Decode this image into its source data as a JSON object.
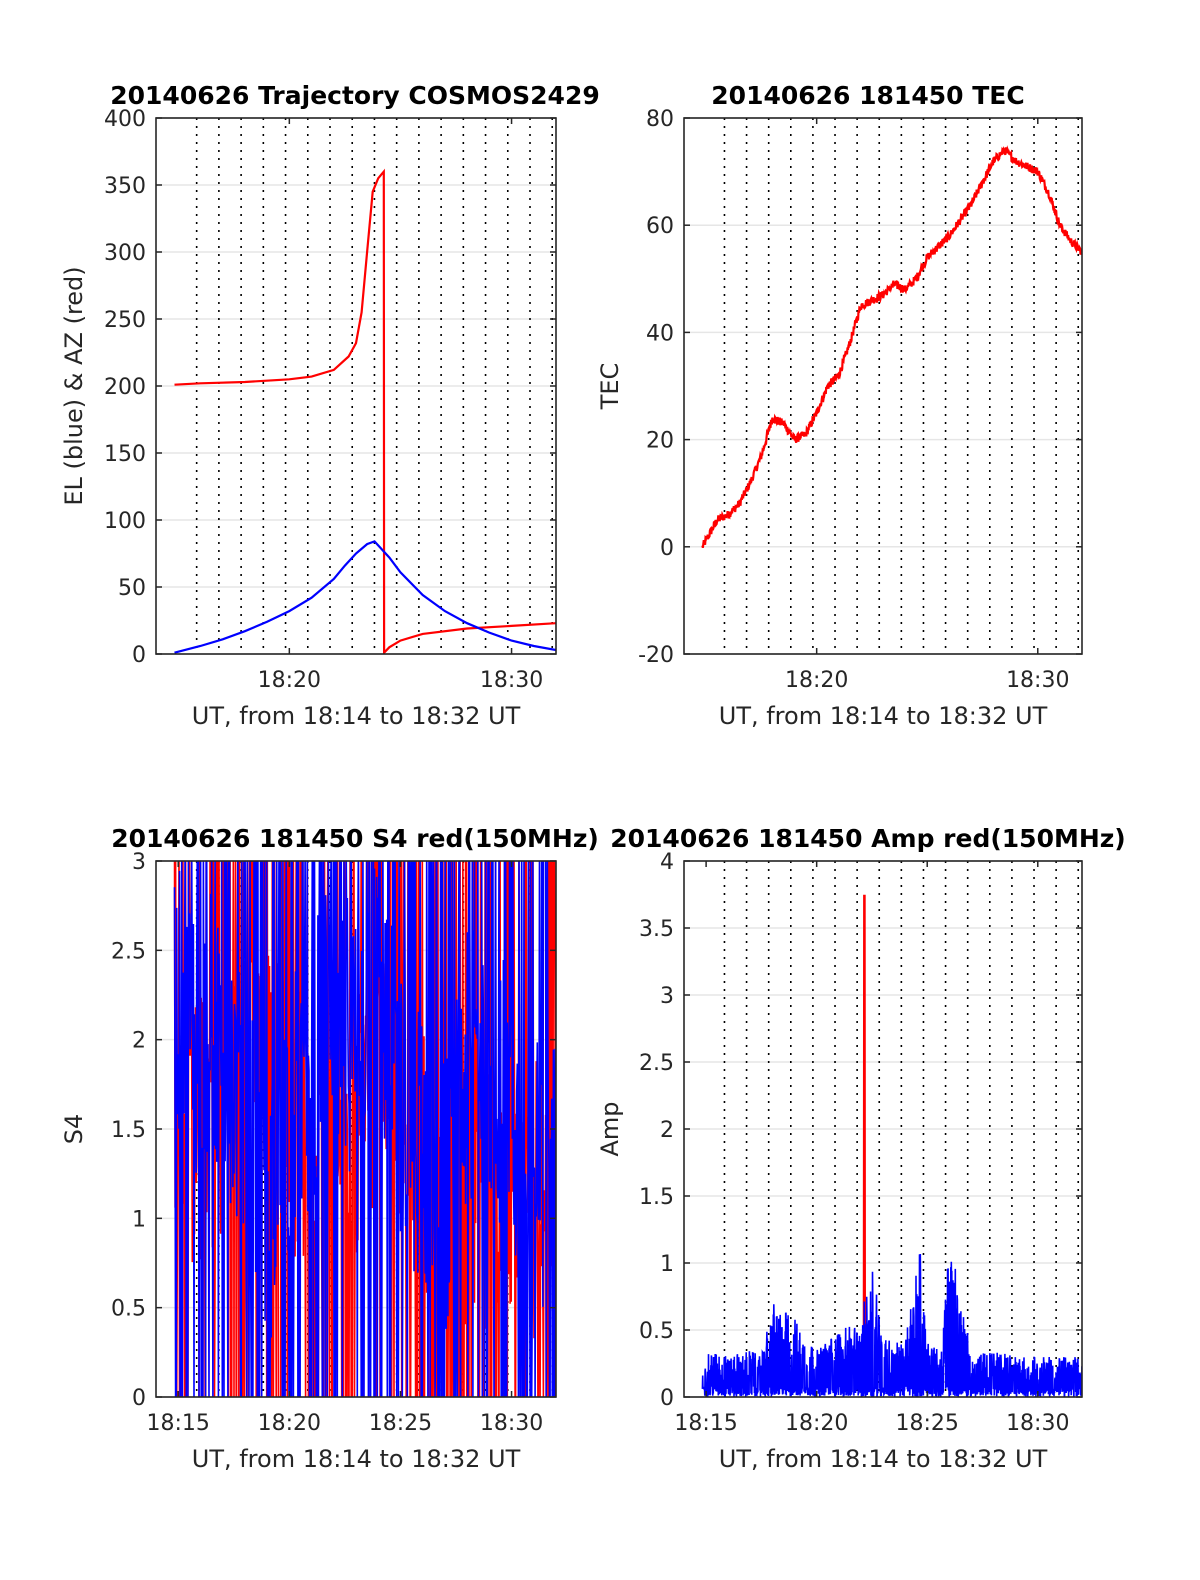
{
  "figure": {
    "background": "#ffffff"
  },
  "colors": {
    "red": "#ff0000",
    "blue": "#0000ff",
    "axis": "#262626",
    "grid": "#e6e6e6",
    "vline": "#000000"
  },
  "chart_data": [
    {
      "id": "trajectory",
      "type": "line",
      "title": "20140626 Trajectory COSMOS2429",
      "xlabel": "UT, from 18:14 to 18:32 UT",
      "ylabel": "EL (blue) & AZ (red)",
      "xlim": [
        "18:14",
        "18:32"
      ],
      "ylim": [
        0,
        400
      ],
      "xticks": [
        "18:20",
        "18:30"
      ],
      "yticks": [
        "0",
        "50",
        "100",
        "150",
        "200",
        "250",
        "300",
        "350",
        "400"
      ],
      "grid": true,
      "series": [
        {
          "color": "#ff0000",
          "style": "line",
          "x": [
            "18:14:50",
            "18:16:00",
            "18:18:00",
            "18:20:00",
            "18:21:00",
            "18:22:00",
            "18:22:40",
            "18:23:00",
            "18:23:15",
            "18:23:30",
            "18:23:45",
            "18:24:00",
            "18:24:15",
            "18:24:16",
            "18:24:30",
            "18:25:00",
            "18:26:00",
            "18:28:00",
            "18:30:00",
            "18:32:00"
          ],
          "values": [
            201,
            202,
            203,
            205,
            207,
            212,
            222,
            232,
            255,
            300,
            345,
            355,
            360,
            1,
            5,
            10,
            15,
            19,
            21,
            23
          ]
        },
        {
          "color": "#0000ff",
          "style": "line",
          "x": [
            "18:14:50",
            "18:16:00",
            "18:17:00",
            "18:18:00",
            "18:19:00",
            "18:20:00",
            "18:21:00",
            "18:22:00",
            "18:22:30",
            "18:23:00",
            "18:23:30",
            "18:23:50",
            "18:24:30",
            "18:25:00",
            "18:26:00",
            "18:27:00",
            "18:28:00",
            "18:29:00",
            "18:30:00",
            "18:31:00",
            "18:32:00"
          ],
          "values": [
            1,
            6,
            11,
            17,
            24,
            32,
            42,
            56,
            66,
            75,
            82,
            84,
            72,
            61,
            44,
            32,
            23,
            16,
            10,
            6,
            3
          ]
        }
      ]
    },
    {
      "id": "tec",
      "type": "line",
      "title": "20140626 181450 TEC",
      "xlabel": "UT, from 18:14 to 18:32 UT",
      "ylabel": "TEC",
      "xlim": [
        "18:14",
        "18:32"
      ],
      "ylim": [
        -20,
        80
      ],
      "xticks": [
        "18:20",
        "18:30"
      ],
      "yticks": [
        "-20",
        "0",
        "20",
        "40",
        "60",
        "80"
      ],
      "grid": true,
      "series": [
        {
          "color": "#ff0000",
          "style": "line",
          "x": [
            "18:14:50",
            "18:15:30",
            "18:16:00",
            "18:16:30",
            "18:17:00",
            "18:17:30",
            "18:18:00",
            "18:18:30",
            "18:19:00",
            "18:19:30",
            "18:20:00",
            "18:20:30",
            "18:21:00",
            "18:21:30",
            "18:22:00",
            "18:22:30",
            "18:23:00",
            "18:23:30",
            "18:24:00",
            "18:24:30",
            "18:25:00",
            "18:25:30",
            "18:26:00",
            "18:26:30",
            "18:27:00",
            "18:27:30",
            "18:28:00",
            "18:28:30",
            "18:29:00",
            "18:29:30",
            "18:30:00",
            "18:30:30",
            "18:31:00",
            "18:31:30",
            "18:32:00"
          ],
          "values": [
            0,
            5,
            6,
            8,
            12,
            17,
            24,
            23,
            20,
            21,
            25,
            30,
            32,
            38,
            45,
            46,
            47,
            49,
            48,
            50,
            54,
            56,
            58,
            61,
            64,
            68,
            72,
            74,
            72,
            71,
            70,
            66,
            60,
            57,
            55
          ]
        }
      ]
    },
    {
      "id": "s4",
      "type": "line",
      "title": "20140626 181450 S4 red(150MHz)",
      "xlabel": "UT, from 18:14 to 18:32 UT",
      "ylabel": "S4",
      "xlim": [
        "18:14",
        "18:32"
      ],
      "ylim": [
        0,
        3
      ],
      "xticks": [
        "18:15",
        "18:20",
        "18:25",
        "18:30"
      ],
      "yticks": [
        "0",
        "0.5",
        "1",
        "1.5",
        "2",
        "2.5",
        "3"
      ],
      "grid": true,
      "series": [
        {
          "color": "#ff0000",
          "style": "noisy",
          "x": [
            "18:14:50",
            "18:16:00",
            "18:17:00",
            "18:18:00",
            "18:19:00",
            "18:20:00",
            "18:21:00",
            "18:22:00",
            "18:23:00",
            "18:24:00",
            "18:25:00",
            "18:26:00",
            "18:27:00",
            "18:28:00",
            "18:29:00",
            "18:30:00",
            "18:31:00",
            "18:32:00"
          ],
          "values": [
            1.4,
            1.5,
            1.6,
            1.7,
            1.8,
            1.6,
            1.5,
            1.9,
            1.6,
            1.8,
            1.7,
            1.4,
            1.2,
            1.2,
            1.1,
            1.0,
            1.1,
            1.3
          ]
        },
        {
          "color": "#0000ff",
          "style": "noisy",
          "x": [
            "18:14:50",
            "18:16:00",
            "18:17:00",
            "18:18:00",
            "18:19:00",
            "18:20:00",
            "18:21:00",
            "18:22:00",
            "18:23:00",
            "18:24:00",
            "18:25:00",
            "18:26:00",
            "18:27:00",
            "18:28:00",
            "18:29:00",
            "18:30:00",
            "18:31:00",
            "18:32:00"
          ],
          "values": [
            2.2,
            2.0,
            2.1,
            1.5,
            1.0,
            1.6,
            1.8,
            2.2,
            2.0,
            2.3,
            1.6,
            1.4,
            1.1,
            1.8,
            2.0,
            1.5,
            1.2,
            1.4
          ]
        }
      ]
    },
    {
      "id": "amp",
      "type": "line",
      "title": "20140626 181450 Amp red(150MHz)",
      "xlabel": "UT, from 18:14 to 18:32 UT",
      "ylabel": "Amp",
      "xlim": [
        "18:14",
        "18:32"
      ],
      "ylim": [
        0,
        4
      ],
      "xticks": [
        "18:15",
        "18:20",
        "18:25",
        "18:30"
      ],
      "yticks": [
        "0",
        "0.5",
        "1",
        "1.5",
        "2",
        "2.5",
        "3",
        "3.5",
        "4"
      ],
      "grid": true,
      "series": [
        {
          "color": "#ff0000",
          "style": "line",
          "x": [
            "18:22:08",
            "18:22:09",
            "18:22:10",
            "18:22:11",
            "18:22:12"
          ],
          "values": [
            0.2,
            3.74,
            3.74,
            0.3,
            0.2
          ]
        },
        {
          "color": "#0000ff",
          "style": "spiky",
          "x": [
            "18:14:50",
            "18:15:30",
            "18:16:00",
            "18:17:00",
            "18:17:30",
            "18:18:00",
            "18:18:30",
            "18:19:00",
            "18:19:30",
            "18:20:00",
            "18:21:00",
            "18:22:00",
            "18:22:30",
            "18:23:00",
            "18:24:00",
            "18:24:40",
            "18:25:00",
            "18:25:40",
            "18:26:00",
            "18:26:30",
            "18:27:00",
            "18:28:00",
            "18:29:00",
            "18:30:00",
            "18:31:00",
            "18:32:00"
          ],
          "values": [
            0.3,
            0.35,
            0.3,
            0.35,
            0.3,
            0.7,
            0.65,
            0.6,
            0.45,
            0.35,
            0.5,
            0.55,
            1.1,
            0.45,
            0.4,
            1.15,
            0.4,
            0.35,
            1.2,
            0.8,
            0.3,
            0.35,
            0.3,
            0.3,
            0.3,
            0.3
          ]
        }
      ]
    }
  ]
}
